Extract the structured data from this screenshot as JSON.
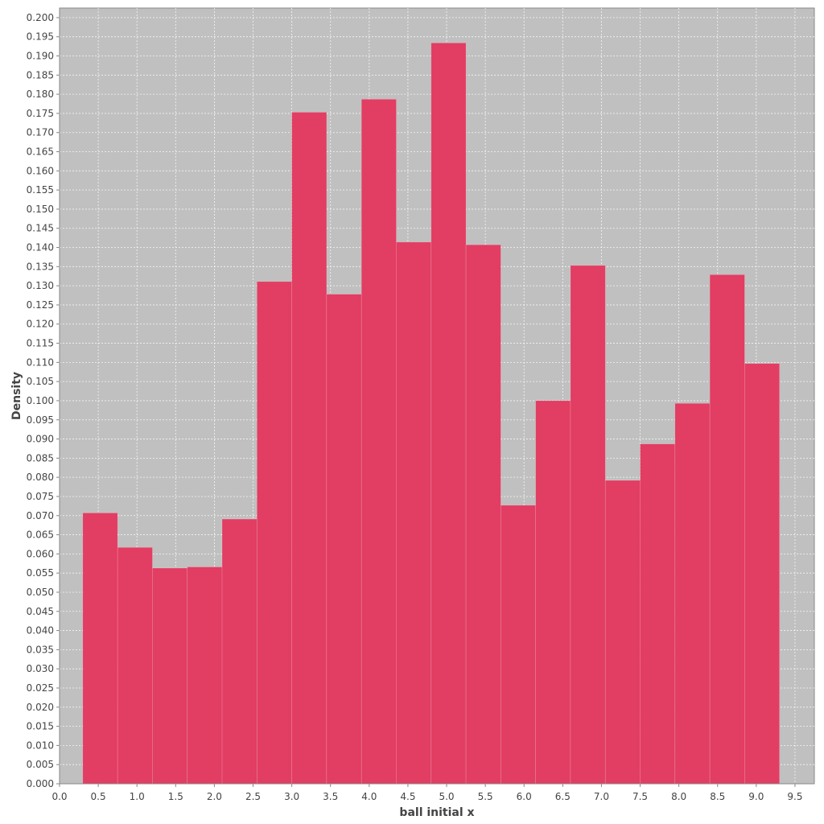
{
  "chart_data": {
    "type": "bar",
    "histogram": true,
    "title": "",
    "xlabel": "ball initial x",
    "ylabel": "Density",
    "xlim": [
      0.0,
      9.75
    ],
    "ylim": [
      0.0,
      0.2025
    ],
    "x_ticks": [
      0.0,
      0.5,
      1.0,
      1.5,
      2.0,
      2.5,
      3.0,
      3.5,
      4.0,
      4.5,
      5.0,
      5.5,
      6.0,
      6.5,
      7.0,
      7.5,
      8.0,
      8.5,
      9.0,
      9.5
    ],
    "y_ticks": [
      0.0,
      0.005,
      0.01,
      0.015,
      0.02,
      0.025,
      0.03,
      0.035,
      0.04,
      0.045,
      0.05,
      0.055,
      0.06,
      0.065,
      0.07,
      0.075,
      0.08,
      0.085,
      0.09,
      0.095,
      0.1,
      0.105,
      0.11,
      0.115,
      0.12,
      0.125,
      0.13,
      0.135,
      0.14,
      0.145,
      0.15,
      0.155,
      0.16,
      0.165,
      0.17,
      0.175,
      0.18,
      0.185,
      0.19,
      0.195,
      0.2
    ],
    "x_tick_decimals": 1,
    "y_tick_decimals": 3,
    "grid": true,
    "bins": [
      {
        "x0": 0.3,
        "x1": 0.75,
        "value": 0.0707
      },
      {
        "x0": 0.75,
        "x1": 1.2,
        "value": 0.0617
      },
      {
        "x0": 1.2,
        "x1": 1.65,
        "value": 0.0563
      },
      {
        "x0": 1.65,
        "x1": 2.1,
        "value": 0.0566
      },
      {
        "x0": 2.1,
        "x1": 2.55,
        "value": 0.0691
      },
      {
        "x0": 2.55,
        "x1": 3.0,
        "value": 0.1311
      },
      {
        "x0": 3.0,
        "x1": 3.45,
        "value": 0.1753
      },
      {
        "x0": 3.45,
        "x1": 3.9,
        "value": 0.1278
      },
      {
        "x0": 3.9,
        "x1": 4.35,
        "value": 0.1787
      },
      {
        "x0": 4.35,
        "x1": 4.8,
        "value": 0.1414
      },
      {
        "x0": 4.8,
        "x1": 5.25,
        "value": 0.1934
      },
      {
        "x0": 5.25,
        "x1": 5.7,
        "value": 0.1407
      },
      {
        "x0": 5.7,
        "x1": 6.15,
        "value": 0.0727
      },
      {
        "x0": 6.15,
        "x1": 6.6,
        "value": 0.1
      },
      {
        "x0": 6.6,
        "x1": 7.05,
        "value": 0.1353
      },
      {
        "x0": 7.05,
        "x1": 7.5,
        "value": 0.0792
      },
      {
        "x0": 7.5,
        "x1": 7.95,
        "value": 0.0887
      },
      {
        "x0": 7.95,
        "x1": 8.4,
        "value": 0.0993
      },
      {
        "x0": 8.4,
        "x1": 8.85,
        "value": 0.1329
      },
      {
        "x0": 8.85,
        "x1": 9.3,
        "value": 0.1097
      }
    ],
    "colors": {
      "bar": "#e23d62",
      "plot_background": "#c0c0c0",
      "grid": "#ffffff",
      "axis": "#888888",
      "text": "#444444"
    }
  }
}
